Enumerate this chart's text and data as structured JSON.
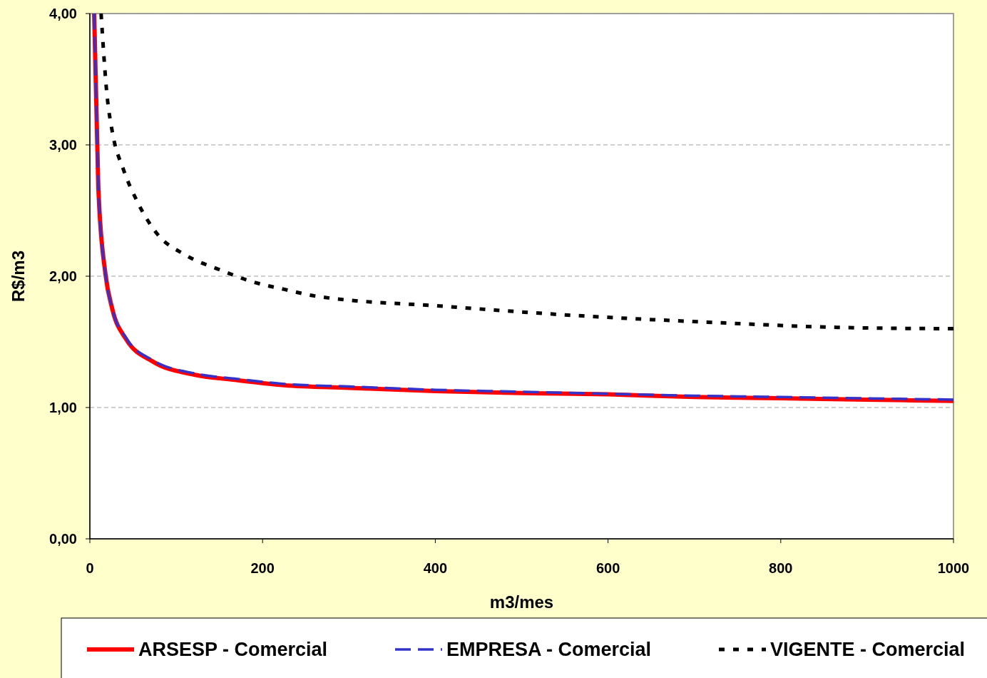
{
  "chart_data": {
    "type": "line",
    "xlabel": "m3/mes",
    "ylabel": "R$/m3",
    "xlim": [
      0,
      1000
    ],
    "xticks": [
      0,
      200,
      400,
      600,
      800,
      1000
    ],
    "ylim": [
      0,
      4
    ],
    "yticks": [
      {
        "value": 0,
        "label": "0,00"
      },
      {
        "value": 1,
        "label": "1,00"
      },
      {
        "value": 2,
        "label": "2,00"
      },
      {
        "value": 3,
        "label": "3,00"
      },
      {
        "value": 4,
        "label": "4,00"
      }
    ],
    "grid": "y",
    "legend": "bottom",
    "series": [
      {
        "name": "ARSESP - Comercial",
        "color": "#ff0000",
        "line_style": "solid",
        "x": [
          5,
          8.6,
          10,
          18,
          26,
          42,
          73,
          121,
          168,
          225,
          300,
          400,
          500,
          600,
          700,
          800,
          900,
          1000
        ],
        "values": [
          4.0,
          3.0,
          2.65,
          2.02,
          1.75,
          1.52,
          1.35,
          1.25,
          1.21,
          1.17,
          1.15,
          1.125,
          1.11,
          1.1,
          1.08,
          1.07,
          1.06,
          1.05
        ]
      },
      {
        "name": "EMPRESA - Comercial",
        "color": "#3333cc",
        "line_style": "dashed",
        "x": [
          5,
          8.6,
          10,
          18,
          26,
          42,
          73,
          121,
          168,
          225,
          300,
          400,
          500,
          600,
          700,
          800,
          900,
          1000
        ],
        "values": [
          4.0,
          3.0,
          2.65,
          2.02,
          1.75,
          1.53,
          1.36,
          1.26,
          1.22,
          1.18,
          1.16,
          1.135,
          1.12,
          1.105,
          1.09,
          1.08,
          1.07,
          1.06
        ]
      },
      {
        "name": "VIGENTE - Comercial",
        "color": "#000000",
        "line_style": "dotted",
        "x": [
          13,
          20,
          26,
          39,
          54,
          77,
          111,
          150,
          187,
          225,
          260,
          412,
          564,
          715,
          867,
          1000
        ],
        "values": [
          4.0,
          3.37,
          3.1,
          2.81,
          2.58,
          2.33,
          2.16,
          2.05,
          1.96,
          1.9,
          1.85,
          1.77,
          1.7,
          1.65,
          1.61,
          1.6
        ]
      }
    ]
  }
}
